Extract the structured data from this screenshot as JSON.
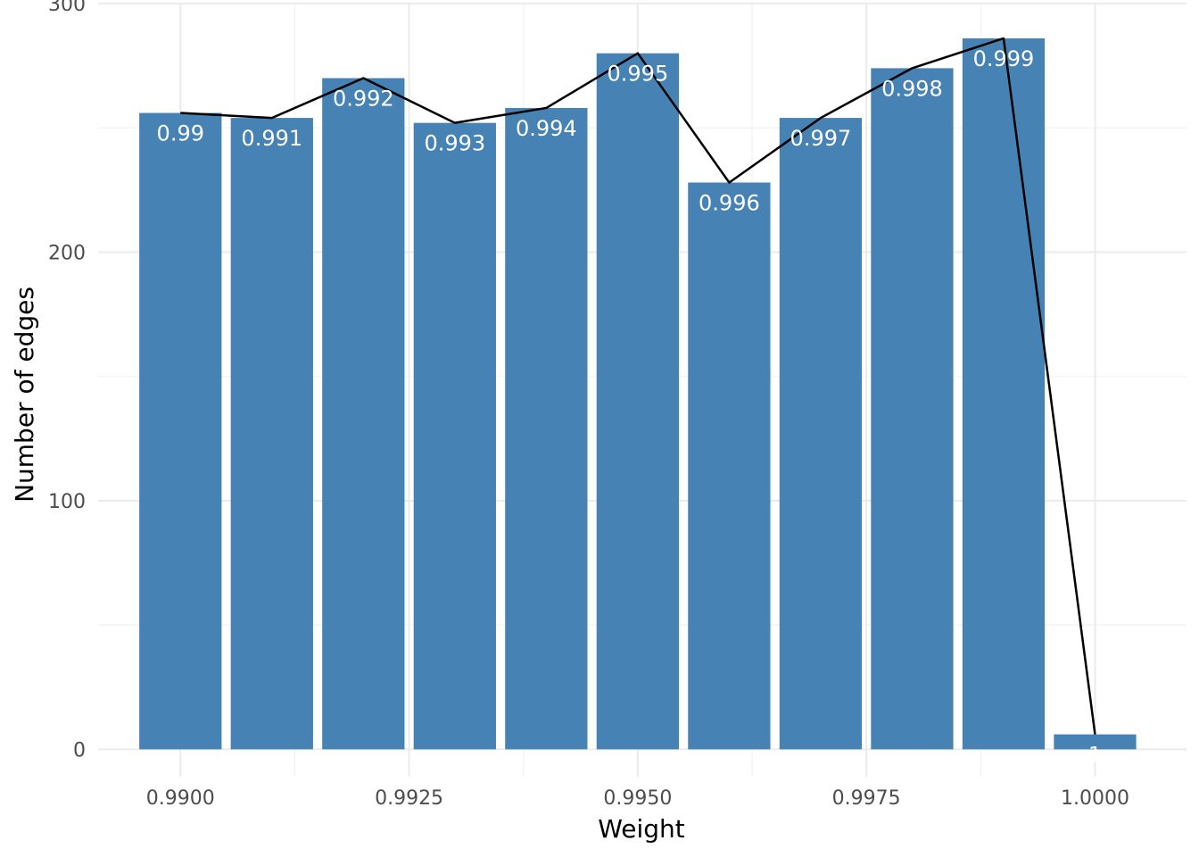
{
  "chart_data": {
    "type": "bar",
    "title": "",
    "xlabel": "Weight",
    "ylabel": "Number of edges",
    "x": [
      0.99,
      0.991,
      0.992,
      0.993,
      0.994,
      0.995,
      0.996,
      0.997,
      0.998,
      0.999,
      1.0
    ],
    "bar_labels": [
      "0.99",
      "0.991",
      "0.992",
      "0.993",
      "0.994",
      "0.995",
      "0.996",
      "0.997",
      "0.998",
      "0.999",
      "1"
    ],
    "values": [
      256,
      254,
      270,
      252,
      258,
      280,
      228,
      254,
      274,
      286,
      6
    ],
    "line_values": [
      256,
      254,
      270,
      252,
      258,
      280,
      228,
      254,
      274,
      286,
      6
    ],
    "xlim": [
      0.9891,
      1.001
    ],
    "ylim": [
      -11,
      300
    ],
    "x_ticks": [
      0.99,
      0.9925,
      0.995,
      0.9975,
      1.0
    ],
    "x_tick_labels": [
      "0.9900",
      "0.9925",
      "0.9950",
      "0.9975",
      "1.0000"
    ],
    "y_ticks": [
      0,
      100,
      200,
      300
    ],
    "y_tick_labels": [
      "0",
      "100",
      "200",
      "300"
    ],
    "grid": true,
    "bar_color": "#4682B4",
    "line_color": "#000000"
  }
}
